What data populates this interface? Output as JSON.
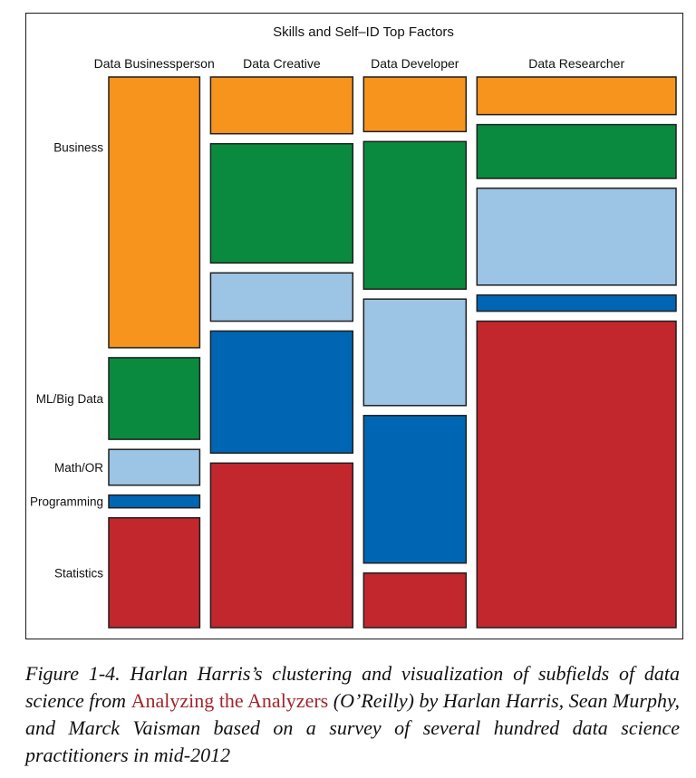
{
  "chart_data": {
    "type": "mosaic",
    "title": "Skills and Self–ID Top Factors",
    "columns": [
      "Data Businessperson",
      "Data Creative",
      "Data Developer",
      "Data Researcher"
    ],
    "column_share": [
      0.16,
      0.25,
      0.18,
      0.35
    ],
    "rows": [
      "Business",
      "ML/Big Data",
      "Math/OR",
      "Programming",
      "Statistics"
    ],
    "colors": [
      "#f7941d",
      "#0a8a3f",
      "#9cc4e4",
      "#0066b3",
      "#c1272d"
    ],
    "row_label_anchor_column": "Data Businessperson",
    "proportions": {
      "Data Businessperson": [
        0.53,
        0.16,
        0.07,
        0.025,
        0.215
      ],
      "Data Creative": [
        0.1,
        0.21,
        0.085,
        0.215,
        0.29
      ],
      "Data Developer": [
        0.1,
        0.27,
        0.195,
        0.27,
        0.1
      ],
      "Data Researcher": [
        0.07,
        0.1,
        0.18,
        0.03,
        0.57
      ]
    },
    "grid": false,
    "legend": "none"
  },
  "caption": {
    "prefix": "Figure 1-4. Harlan Harris’s clustering and visualization of subfields of data science from ",
    "link": "Analyzing the Analyzers",
    "suffix": " (O’Reilly) by Harlan Harris, Sean Murphy, and Marck Vaisman based on a survey of several hundred data science practitioners in mid-2012"
  }
}
